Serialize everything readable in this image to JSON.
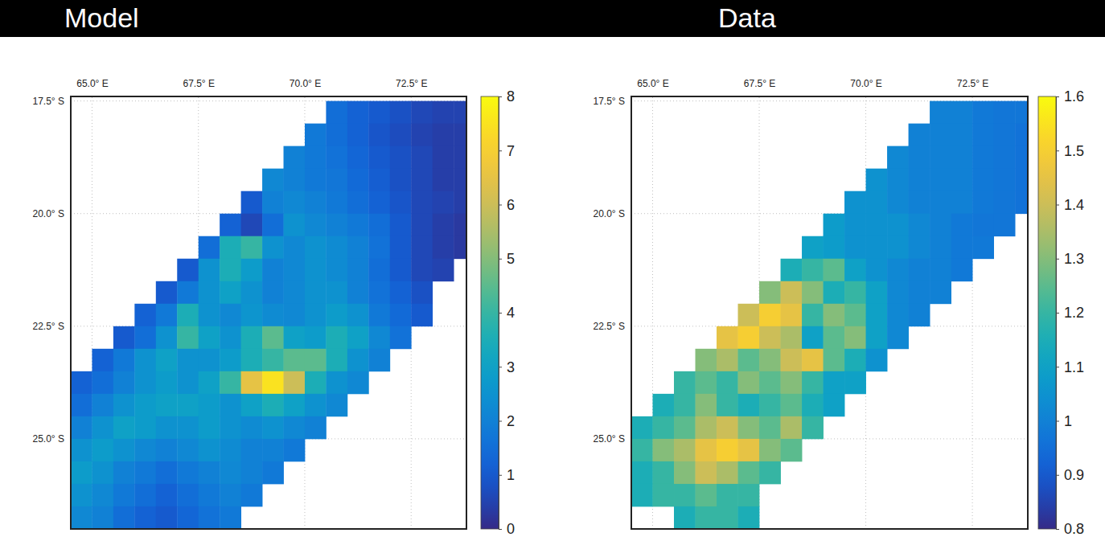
{
  "chart_data": [
    {
      "type": "heatmap",
      "title": "Model",
      "x": [
        64.75,
        65.25,
        65.75,
        66.25,
        66.75,
        67.25,
        67.75,
        68.25,
        68.75,
        69.25,
        69.75,
        70.25,
        70.75,
        71.25,
        71.75,
        72.25,
        72.75,
        73.25,
        73.75
      ],
      "y": [
        -17.75,
        -18.25,
        -18.75,
        -19.25,
        -19.75,
        -20.25,
        -20.75,
        -21.25,
        -21.75,
        -22.25,
        -22.75,
        -23.25,
        -23.75,
        -24.25,
        -24.75,
        -25.25,
        -25.75,
        -26.25,
        -26.75
      ],
      "z": [
        [
          null,
          null,
          null,
          null,
          null,
          null,
          null,
          null,
          null,
          null,
          null,
          null,
          1.5,
          1.2,
          1.0,
          0.8,
          0.6,
          0.5,
          0.5
        ],
        [
          null,
          null,
          null,
          null,
          null,
          null,
          null,
          null,
          null,
          null,
          null,
          1.8,
          1.5,
          1.2,
          0.9,
          0.7,
          0.5,
          0.4,
          0.4
        ],
        [
          null,
          null,
          null,
          null,
          null,
          null,
          null,
          null,
          null,
          null,
          2.0,
          1.8,
          1.6,
          1.3,
          1.0,
          0.8,
          0.6,
          0.4,
          0.4
        ],
        [
          null,
          null,
          null,
          null,
          null,
          null,
          null,
          null,
          null,
          2.2,
          2.0,
          1.8,
          1.7,
          1.4,
          1.1,
          0.8,
          0.6,
          0.4,
          0.4
        ],
        [
          null,
          null,
          null,
          null,
          null,
          null,
          null,
          null,
          1.0,
          2.0,
          2.2,
          2.0,
          1.8,
          1.5,
          1.2,
          0.9,
          0.6,
          0.5,
          0.4
        ],
        [
          null,
          null,
          null,
          null,
          null,
          null,
          null,
          1.2,
          0.6,
          1.5,
          2.5,
          2.2,
          2.0,
          1.8,
          1.5,
          1.0,
          0.6,
          0.4,
          0.3
        ],
        [
          null,
          null,
          null,
          null,
          null,
          null,
          1.5,
          3.5,
          4.0,
          2.5,
          2.2,
          2.5,
          2.3,
          2.0,
          1.6,
          1.0,
          0.6,
          0.4,
          0.3
        ],
        [
          null,
          null,
          null,
          null,
          null,
          1.0,
          2.5,
          3.5,
          2.8,
          2.0,
          2.2,
          2.5,
          2.3,
          2.0,
          1.5,
          1.0,
          0.6,
          0.5,
          null
        ],
        [
          null,
          null,
          null,
          null,
          1.0,
          1.8,
          2.5,
          3.0,
          2.5,
          2.0,
          2.2,
          2.5,
          2.5,
          2.0,
          1.6,
          1.2,
          0.8,
          null,
          null
        ],
        [
          null,
          null,
          null,
          1.2,
          1.8,
          3.5,
          2.5,
          2.2,
          2.6,
          2.3,
          2.2,
          2.5,
          2.8,
          2.5,
          1.8,
          1.4,
          1.0,
          null,
          null
        ],
        [
          null,
          null,
          1.0,
          1.5,
          2.5,
          4.0,
          3.0,
          2.5,
          3.5,
          4.5,
          3.0,
          2.8,
          3.5,
          3.0,
          2.2,
          1.6,
          null,
          null,
          null
        ],
        [
          null,
          1.2,
          1.8,
          2.5,
          3.0,
          2.5,
          2.5,
          2.8,
          3.5,
          4.0,
          4.5,
          4.5,
          3.5,
          2.5,
          2.0,
          null,
          null,
          null,
          null
        ],
        [
          1.2,
          1.5,
          2.0,
          2.5,
          2.8,
          2.5,
          3.0,
          4.0,
          6.5,
          7.5,
          6.0,
          3.5,
          2.5,
          2.2,
          null,
          null,
          null,
          null,
          null
        ],
        [
          1.5,
          2.0,
          2.5,
          2.8,
          3.0,
          3.0,
          2.8,
          2.5,
          3.0,
          3.5,
          3.0,
          2.5,
          2.2,
          null,
          null,
          null,
          null,
          null,
          null
        ],
        [
          2.0,
          2.5,
          3.0,
          2.8,
          2.5,
          2.5,
          2.8,
          2.5,
          2.3,
          2.5,
          2.2,
          2.0,
          null,
          null,
          null,
          null,
          null,
          null,
          null
        ],
        [
          2.5,
          2.8,
          2.5,
          2.2,
          2.0,
          2.2,
          2.5,
          2.3,
          2.0,
          2.0,
          1.8,
          null,
          null,
          null,
          null,
          null,
          null,
          null,
          null
        ],
        [
          2.8,
          2.5,
          2.0,
          1.8,
          1.5,
          1.8,
          2.0,
          2.2,
          2.0,
          1.8,
          null,
          null,
          null,
          null,
          null,
          null,
          null,
          null,
          null
        ],
        [
          2.5,
          2.2,
          1.8,
          1.5,
          1.2,
          1.5,
          1.8,
          2.0,
          1.8,
          null,
          null,
          null,
          null,
          null,
          null,
          null,
          null,
          null,
          null
        ],
        [
          2.2,
          2.0,
          1.5,
          1.2,
          1.0,
          1.3,
          1.6,
          1.8,
          null,
          null,
          null,
          null,
          null,
          null,
          null,
          null,
          null,
          null,
          null
        ]
      ],
      "xlim": [
        64.5,
        73.8
      ],
      "ylim": [
        -27,
        -17.4
      ],
      "xticks": [
        {
          "value": 65,
          "label": "65.0° E"
        },
        {
          "value": 67.5,
          "label": "67.5° E"
        },
        {
          "value": 70,
          "label": "70.0° E"
        },
        {
          "value": 72.5,
          "label": "72.5° E"
        }
      ],
      "yticks": [
        {
          "value": -17.5,
          "label": "17.5° S"
        },
        {
          "value": -20,
          "label": "20.0° S"
        },
        {
          "value": -22.5,
          "label": "22.5° S"
        },
        {
          "value": -25,
          "label": "25.0° S"
        }
      ],
      "grid": true,
      "colorbar_range": [
        0,
        8
      ],
      "colorbar_ticks": [
        0,
        1,
        2,
        3,
        4,
        5,
        6,
        7,
        8
      ]
    },
    {
      "type": "heatmap",
      "title": "Data",
      "x": [
        64.75,
        65.25,
        65.75,
        66.25,
        66.75,
        67.25,
        67.75,
        68.25,
        68.75,
        69.25,
        69.75,
        70.25,
        70.75,
        71.25,
        71.75,
        72.25,
        72.75,
        73.25,
        73.75
      ],
      "y": [
        -17.75,
        -18.25,
        -18.75,
        -19.25,
        -19.75,
        -20.25,
        -20.75,
        -21.25,
        -21.75,
        -22.25,
        -22.75,
        -23.25,
        -23.75,
        -24.25,
        -24.75,
        -25.25,
        -25.75,
        -26.25,
        -26.75
      ],
      "z": [
        [
          null,
          null,
          null,
          null,
          null,
          null,
          null,
          null,
          null,
          null,
          null,
          null,
          null,
          null,
          1.0,
          1.0,
          0.98,
          0.97,
          0.97
        ],
        [
          null,
          null,
          null,
          null,
          null,
          null,
          null,
          null,
          null,
          null,
          null,
          null,
          null,
          1.0,
          1.0,
          1.0,
          0.98,
          0.97,
          0.96
        ],
        [
          null,
          null,
          null,
          null,
          null,
          null,
          null,
          null,
          null,
          null,
          null,
          null,
          1.02,
          1.0,
          1.0,
          1.0,
          0.98,
          0.97,
          0.96
        ],
        [
          null,
          null,
          null,
          null,
          null,
          null,
          null,
          null,
          null,
          null,
          null,
          1.05,
          1.02,
          1.0,
          1.0,
          1.0,
          0.98,
          0.97,
          0.96
        ],
        [
          null,
          null,
          null,
          null,
          null,
          null,
          null,
          null,
          null,
          null,
          1.05,
          1.05,
          1.02,
          1.0,
          1.0,
          1.0,
          0.98,
          0.97,
          0.96
        ],
        [
          null,
          null,
          null,
          null,
          null,
          null,
          null,
          null,
          null,
          1.08,
          1.05,
          1.05,
          1.05,
          1.02,
          1.0,
          0.98,
          0.97,
          0.97,
          null
        ],
        [
          null,
          null,
          null,
          null,
          null,
          null,
          null,
          null,
          1.1,
          1.08,
          1.05,
          1.05,
          1.05,
          1.02,
          1.0,
          0.98,
          0.98,
          null,
          null
        ],
        [
          null,
          null,
          null,
          null,
          null,
          null,
          null,
          1.15,
          1.2,
          1.25,
          1.1,
          1.05,
          1.02,
          1.0,
          1.0,
          0.98,
          null,
          null,
          null
        ],
        [
          null,
          null,
          null,
          null,
          null,
          null,
          1.3,
          1.4,
          1.3,
          1.15,
          1.2,
          1.1,
          1.02,
          1.0,
          1.0,
          null,
          null,
          null,
          null
        ],
        [
          null,
          null,
          null,
          null,
          null,
          1.4,
          1.5,
          1.45,
          1.2,
          1.3,
          1.25,
          1.1,
          1.02,
          1.0,
          null,
          null,
          null,
          null,
          null
        ],
        [
          null,
          null,
          null,
          null,
          1.45,
          1.5,
          1.4,
          1.35,
          1.1,
          1.25,
          1.3,
          1.1,
          1.02,
          null,
          null,
          null,
          null,
          null,
          null
        ],
        [
          null,
          null,
          null,
          1.3,
          1.35,
          1.25,
          1.3,
          1.4,
          1.45,
          1.25,
          1.15,
          1.05,
          null,
          null,
          null,
          null,
          null,
          null,
          null
        ],
        [
          null,
          null,
          1.2,
          1.25,
          1.2,
          1.3,
          1.25,
          1.3,
          1.2,
          1.1,
          1.1,
          null,
          null,
          null,
          null,
          null,
          null,
          null,
          null
        ],
        [
          null,
          1.15,
          1.2,
          1.3,
          1.2,
          1.15,
          1.2,
          1.25,
          1.15,
          1.1,
          null,
          null,
          null,
          null,
          null,
          null,
          null,
          null,
          null
        ],
        [
          1.15,
          1.2,
          1.25,
          1.35,
          1.4,
          1.3,
          1.25,
          1.35,
          1.2,
          null,
          null,
          null,
          null,
          null,
          null,
          null,
          null,
          null,
          null
        ],
        [
          1.2,
          1.3,
          1.35,
          1.45,
          1.5,
          1.45,
          1.3,
          1.25,
          null,
          null,
          null,
          null,
          null,
          null,
          null,
          null,
          null,
          null,
          null
        ],
        [
          1.15,
          1.2,
          1.3,
          1.4,
          1.35,
          1.25,
          1.2,
          null,
          null,
          null,
          null,
          null,
          null,
          null,
          null,
          null,
          null,
          null,
          null
        ],
        [
          1.15,
          1.2,
          1.2,
          1.25,
          1.2,
          1.2,
          null,
          null,
          null,
          null,
          null,
          null,
          null,
          null,
          null,
          null,
          null,
          null,
          null
        ],
        [
          null,
          null,
          1.15,
          1.2,
          1.2,
          1.15,
          null,
          null,
          null,
          null,
          null,
          null,
          null,
          null,
          null,
          null,
          null,
          null,
          null
        ]
      ],
      "xlim": [
        64.5,
        73.8
      ],
      "ylim": [
        -27,
        -17.4
      ],
      "xticks": [
        {
          "value": 65,
          "label": "65.0° E"
        },
        {
          "value": 67.5,
          "label": "67.5° E"
        },
        {
          "value": 70,
          "label": "70.0° E"
        },
        {
          "value": 72.5,
          "label": "72.5° E"
        }
      ],
      "yticks": [
        {
          "value": -17.5,
          "label": "17.5° S"
        },
        {
          "value": -20,
          "label": "20.0° S"
        },
        {
          "value": -22.5,
          "label": "22.5° S"
        },
        {
          "value": -25,
          "label": "25.0° S"
        }
      ],
      "grid": true,
      "colorbar_range": [
        0.8,
        1.6
      ],
      "colorbar_ticks": [
        0.8,
        0.9,
        1,
        1.1,
        1.2,
        1.3,
        1.4,
        1.5,
        1.6
      ]
    }
  ]
}
